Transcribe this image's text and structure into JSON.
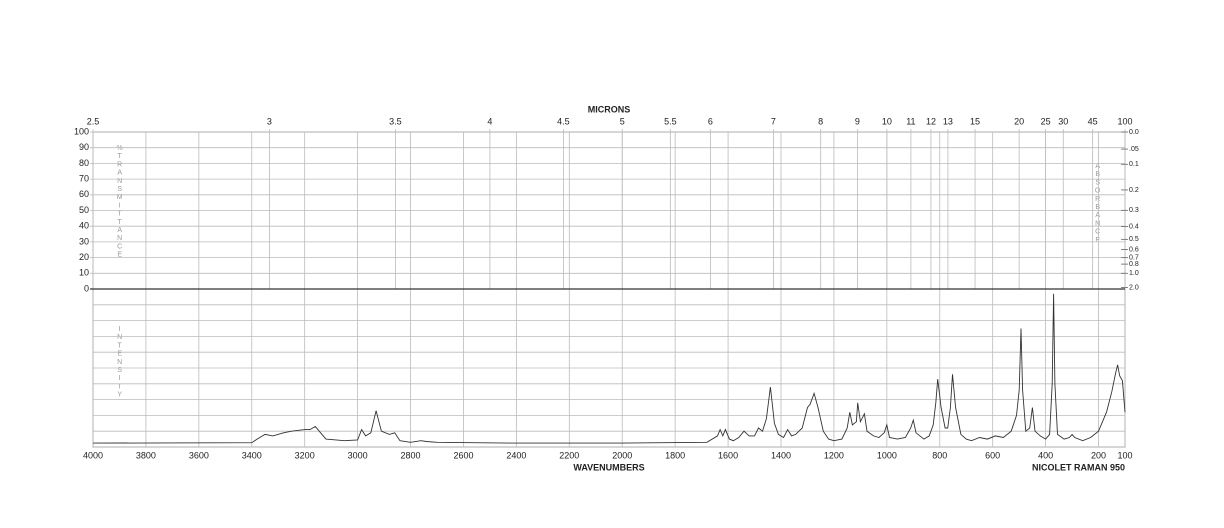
{
  "chart_data": {
    "type": "line",
    "x2_label": "MICRONS",
    "x_label": "WAVENUMBERS",
    "annotation": "NICOLET RAMAN 950",
    "transmittance_label": "%TRANSMITTANCE",
    "absorbance_label": "ABSORBANCE",
    "intensity_label": "INTENSITY",
    "xlim": [
      4000,
      100
    ],
    "xticks": [
      4000,
      3800,
      3600,
      3400,
      3200,
      3000,
      2800,
      2600,
      2400,
      2200,
      2000,
      1800,
      1600,
      1400,
      1200,
      1000,
      800,
      600,
      400,
      200,
      100
    ],
    "x2ticks": [
      2.5,
      3,
      3.5,
      4,
      4.5,
      5,
      5.5,
      6,
      7,
      8,
      9,
      10,
      11,
      12,
      13,
      15,
      20,
      25,
      30,
      45,
      100
    ],
    "transmittance_ylim": [
      0,
      100
    ],
    "transmittance_yticks": [
      0,
      10,
      20,
      30,
      40,
      50,
      60,
      70,
      80,
      90,
      100
    ],
    "absorbance_ticks": [
      {
        "value": 0,
        "label": "0.0"
      },
      {
        "value": 0.05,
        "label": ".05"
      },
      0.1,
      0.2,
      0.3,
      0.4,
      0.5,
      0.6,
      0.7,
      0.8,
      {
        "value": 1,
        "label": "1.0"
      },
      {
        "value": 2,
        "label": "2.0"
      }
    ],
    "ylim": [
      0,
      100
    ],
    "yticks": [
      0,
      10,
      20,
      30,
      40,
      50,
      60,
      70,
      80,
      90,
      100
    ],
    "color": "#333333",
    "x": [
      4000,
      3400,
      3380,
      3350,
      3320,
      3280,
      3250,
      3200,
      3180,
      3160,
      3140,
      3120,
      3050,
      3000,
      2985,
      2970,
      2950,
      2930,
      2910,
      2880,
      2860,
      2840,
      2800,
      2760,
      2740,
      2700,
      2400,
      2200,
      2000,
      1680,
      1640,
      1630,
      1620,
      1610,
      1595,
      1580,
      1560,
      1540,
      1520,
      1500,
      1485,
      1470,
      1455,
      1440,
      1425,
      1410,
      1390,
      1375,
      1360,
      1345,
      1320,
      1300,
      1290,
      1275,
      1260,
      1240,
      1220,
      1200,
      1170,
      1150,
      1140,
      1130,
      1115,
      1110,
      1100,
      1085,
      1075,
      1050,
      1030,
      1010,
      1000,
      990,
      960,
      930,
      910,
      900,
      890,
      860,
      840,
      825,
      815,
      808,
      795,
      780,
      770,
      760,
      752,
      740,
      720,
      700,
      680,
      650,
      620,
      590,
      560,
      530,
      510,
      500,
      493,
      487,
      475,
      460,
      450,
      440,
      420,
      400,
      385,
      375,
      370,
      365,
      355,
      330,
      310,
      300,
      290,
      260,
      230,
      200,
      170,
      150,
      135,
      128,
      120,
      110,
      100
    ],
    "values": [
      2.5,
      2.7,
      5,
      8,
      7,
      9,
      10,
      11,
      11,
      13,
      9,
      5,
      4,
      4.5,
      11,
      7,
      9,
      23,
      10,
      8,
      9,
      4,
      3,
      4,
      3.5,
      3,
      2.5,
      2.5,
      2.5,
      3,
      7,
      11,
      7,
      11,
      5,
      4,
      6,
      10,
      7,
      7,
      12,
      10,
      18,
      38,
      15,
      8,
      6,
      11,
      7,
      8,
      12,
      25,
      27,
      34,
      25,
      10,
      5,
      4,
      5,
      12,
      22,
      14,
      16,
      28,
      16,
      21,
      10,
      7,
      6,
      9,
      14,
      6,
      5,
      6,
      12,
      17,
      9,
      5,
      7,
      14,
      28,
      43,
      25,
      12,
      12,
      25,
      46,
      25,
      8,
      5,
      4,
      6,
      5,
      7,
      6,
      10,
      20,
      36,
      75,
      36,
      10,
      12,
      25,
      10,
      7,
      5,
      8,
      40,
      97,
      40,
      8,
      5,
      6,
      8,
      6,
      4,
      6,
      10,
      22,
      35,
      47,
      52,
      45,
      42,
      22
    ]
  }
}
